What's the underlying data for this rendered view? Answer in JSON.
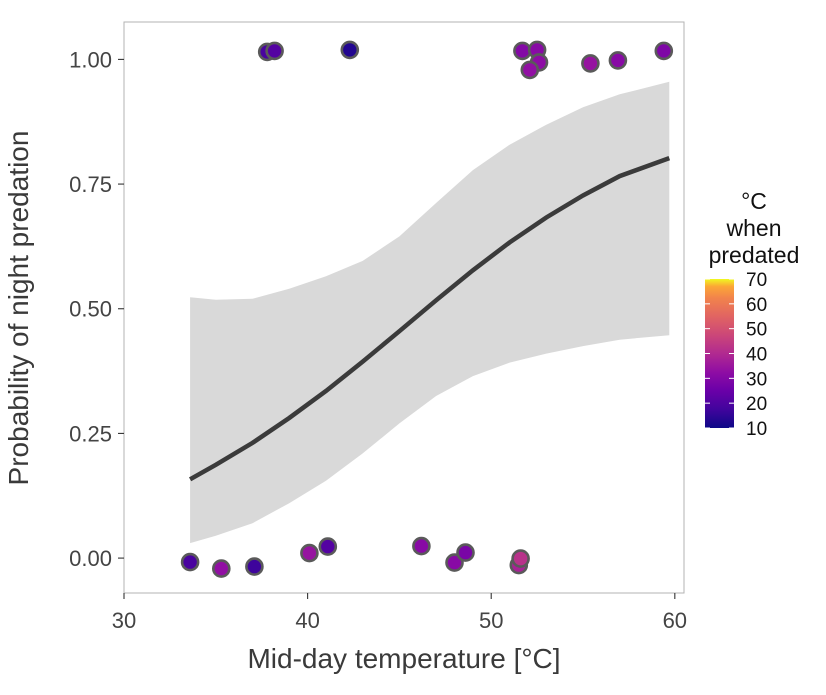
{
  "chart_data": {
    "type": "scatter",
    "xlabel": "Mid-day temperature [°C]",
    "ylabel": "Probability of night predation",
    "xlim": [
      30,
      60.5
    ],
    "ylim": [
      -0.07,
      1.075
    ],
    "xticks": [
      30,
      40,
      50,
      60
    ],
    "yticks": [
      0,
      0.25,
      0.5,
      0.75,
      1
    ],
    "ytick_labels": [
      "0.00",
      "0.25",
      "0.50",
      "0.75",
      "1.00"
    ],
    "xtick_labels": [
      "30",
      "40",
      "50",
      "60"
    ],
    "grid": false,
    "legend": {
      "position": "right",
      "title_lines": [
        "°C",
        "when",
        "predated"
      ],
      "min": 10,
      "max": 70,
      "ticks": [
        10,
        20,
        30,
        40,
        50,
        60,
        70
      ],
      "tick_labels": [
        "10",
        "20",
        "30",
        "40",
        "50",
        "60",
        "70"
      ],
      "colormap": "plasma"
    },
    "fit": {
      "color": "#3b3b3b",
      "band_color": "#d9d9d9",
      "x": [
        33.6,
        35,
        37,
        39,
        41,
        43,
        45,
        47,
        49,
        51,
        53,
        55,
        57,
        59.7
      ],
      "y": [
        0.158,
        0.187,
        0.231,
        0.281,
        0.335,
        0.394,
        0.455,
        0.517,
        0.577,
        0.633,
        0.683,
        0.727,
        0.766,
        0.802
      ],
      "upper": [
        0.523,
        0.518,
        0.52,
        0.54,
        0.565,
        0.596,
        0.645,
        0.712,
        0.778,
        0.829,
        0.869,
        0.904,
        0.93,
        0.955
      ],
      "lower": [
        0.03,
        0.045,
        0.07,
        0.11,
        0.155,
        0.21,
        0.27,
        0.325,
        0.365,
        0.392,
        0.41,
        0.425,
        0.438,
        0.447
      ]
    },
    "points": [
      {
        "x": 37.8,
        "y": 1.015,
        "c": 19
      },
      {
        "x": 38.2,
        "y": 1.017,
        "c": 21
      },
      {
        "x": 42.3,
        "y": 1.019,
        "c": 13
      },
      {
        "x": 51.7,
        "y": 1.017,
        "c": 30
      },
      {
        "x": 52.5,
        "y": 1.019,
        "c": 31
      },
      {
        "x": 52.6,
        "y": 0.994,
        "c": 32
      },
      {
        "x": 52.1,
        "y": 0.979,
        "c": 33
      },
      {
        "x": 55.4,
        "y": 0.992,
        "c": 34
      },
      {
        "x": 56.9,
        "y": 0.998,
        "c": 31
      },
      {
        "x": 59.4,
        "y": 1.017,
        "c": 29
      },
      {
        "x": 33.6,
        "y": -0.008,
        "c": 19
      },
      {
        "x": 35.3,
        "y": -0.021,
        "c": 33
      },
      {
        "x": 37.1,
        "y": -0.017,
        "c": 17
      },
      {
        "x": 40.1,
        "y": 0.01,
        "c": 34
      },
      {
        "x": 41.1,
        "y": 0.023,
        "c": 21
      },
      {
        "x": 46.2,
        "y": 0.024,
        "c": 31
      },
      {
        "x": 48.0,
        "y": -0.009,
        "c": 31
      },
      {
        "x": 48.6,
        "y": 0.011,
        "c": 28
      },
      {
        "x": 51.5,
        "y": -0.014,
        "c": 38
      },
      {
        "x": 51.6,
        "y": -0.001,
        "c": 42
      }
    ]
  }
}
